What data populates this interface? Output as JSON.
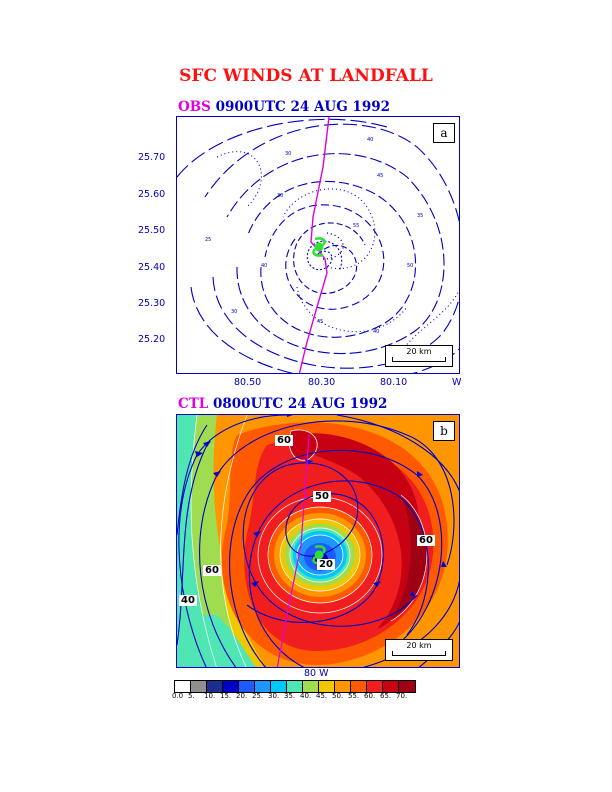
{
  "figure": {
    "title": "SFC WINDS AT LANDFALL"
  },
  "panel_a": {
    "tag": "OBS",
    "time": "0900UTC 24 AUG 1992",
    "letter": "a",
    "y_ticks": [
      "25.70",
      "25.60",
      "25.50",
      "25.40",
      "25.30",
      "25.20"
    ],
    "x_ticks": [
      "80.50",
      "80.30",
      "80.10",
      "W"
    ],
    "scale": "20 km",
    "track_color": "#e000e0",
    "contour_color": "#0000c0"
  },
  "panel_b": {
    "tag": "CTL",
    "time": "0800UTC 24 AUG 1992",
    "letter": "b",
    "contour_labels": [
      "60",
      "60",
      "60",
      "20",
      "50",
      "40"
    ],
    "x_label": "80 W",
    "scale": "20 km"
  },
  "legend": {
    "labels": [
      "0.0",
      "5.",
      "10.",
      "15.",
      "20.",
      "25.",
      "30.",
      "35.",
      "40.",
      "45.",
      "50.",
      "55.",
      "60.",
      "65.",
      "70."
    ],
    "colors": [
      "#ffffff",
      "#909090",
      "#1e2e8c",
      "#0000c8",
      "#1e5aff",
      "#1e96ff",
      "#00c8ff",
      "#50e6b4",
      "#a0dc50",
      "#f0c800",
      "#ff9600",
      "#ff5a00",
      "#f01e1e",
      "#c80014",
      "#a00014"
    ]
  }
}
